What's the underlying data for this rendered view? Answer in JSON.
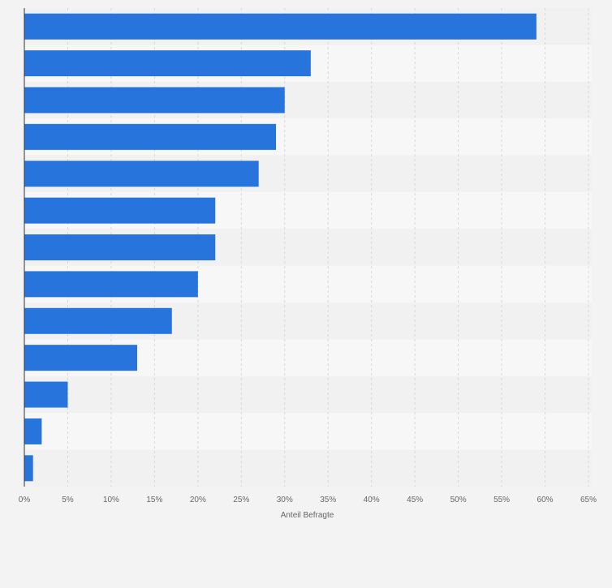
{
  "chart_data": {
    "type": "bar",
    "orientation": "horizontal",
    "title": "",
    "xlabel": "Anteil Befragte",
    "ylabel": "",
    "categories": [
      "",
      "",
      "",
      "",
      "",
      "",
      "",
      "",
      "",
      "",
      "",
      "",
      ""
    ],
    "values": [
      59,
      33,
      30,
      29,
      27,
      22,
      22,
      20,
      17,
      13,
      5,
      2,
      1
    ],
    "xlim": [
      0,
      65
    ],
    "xticks": [
      0,
      5,
      10,
      15,
      20,
      25,
      30,
      35,
      40,
      45,
      50,
      55,
      60,
      65
    ],
    "xtick_labels": [
      "0%",
      "5%",
      "10%",
      "15%",
      "20%",
      "25%",
      "30%",
      "35%",
      "40%",
      "45%",
      "50%",
      "55%",
      "60%",
      "65%"
    ],
    "grid": true,
    "colors": {
      "bar": "#2775dc",
      "background": "#f3f3f3",
      "band_light": "#f7f7f8",
      "band_dark": "#f1f1f2",
      "grid": "#d8d8d8",
      "axis": "#333333",
      "tick_text": "#666666"
    }
  }
}
